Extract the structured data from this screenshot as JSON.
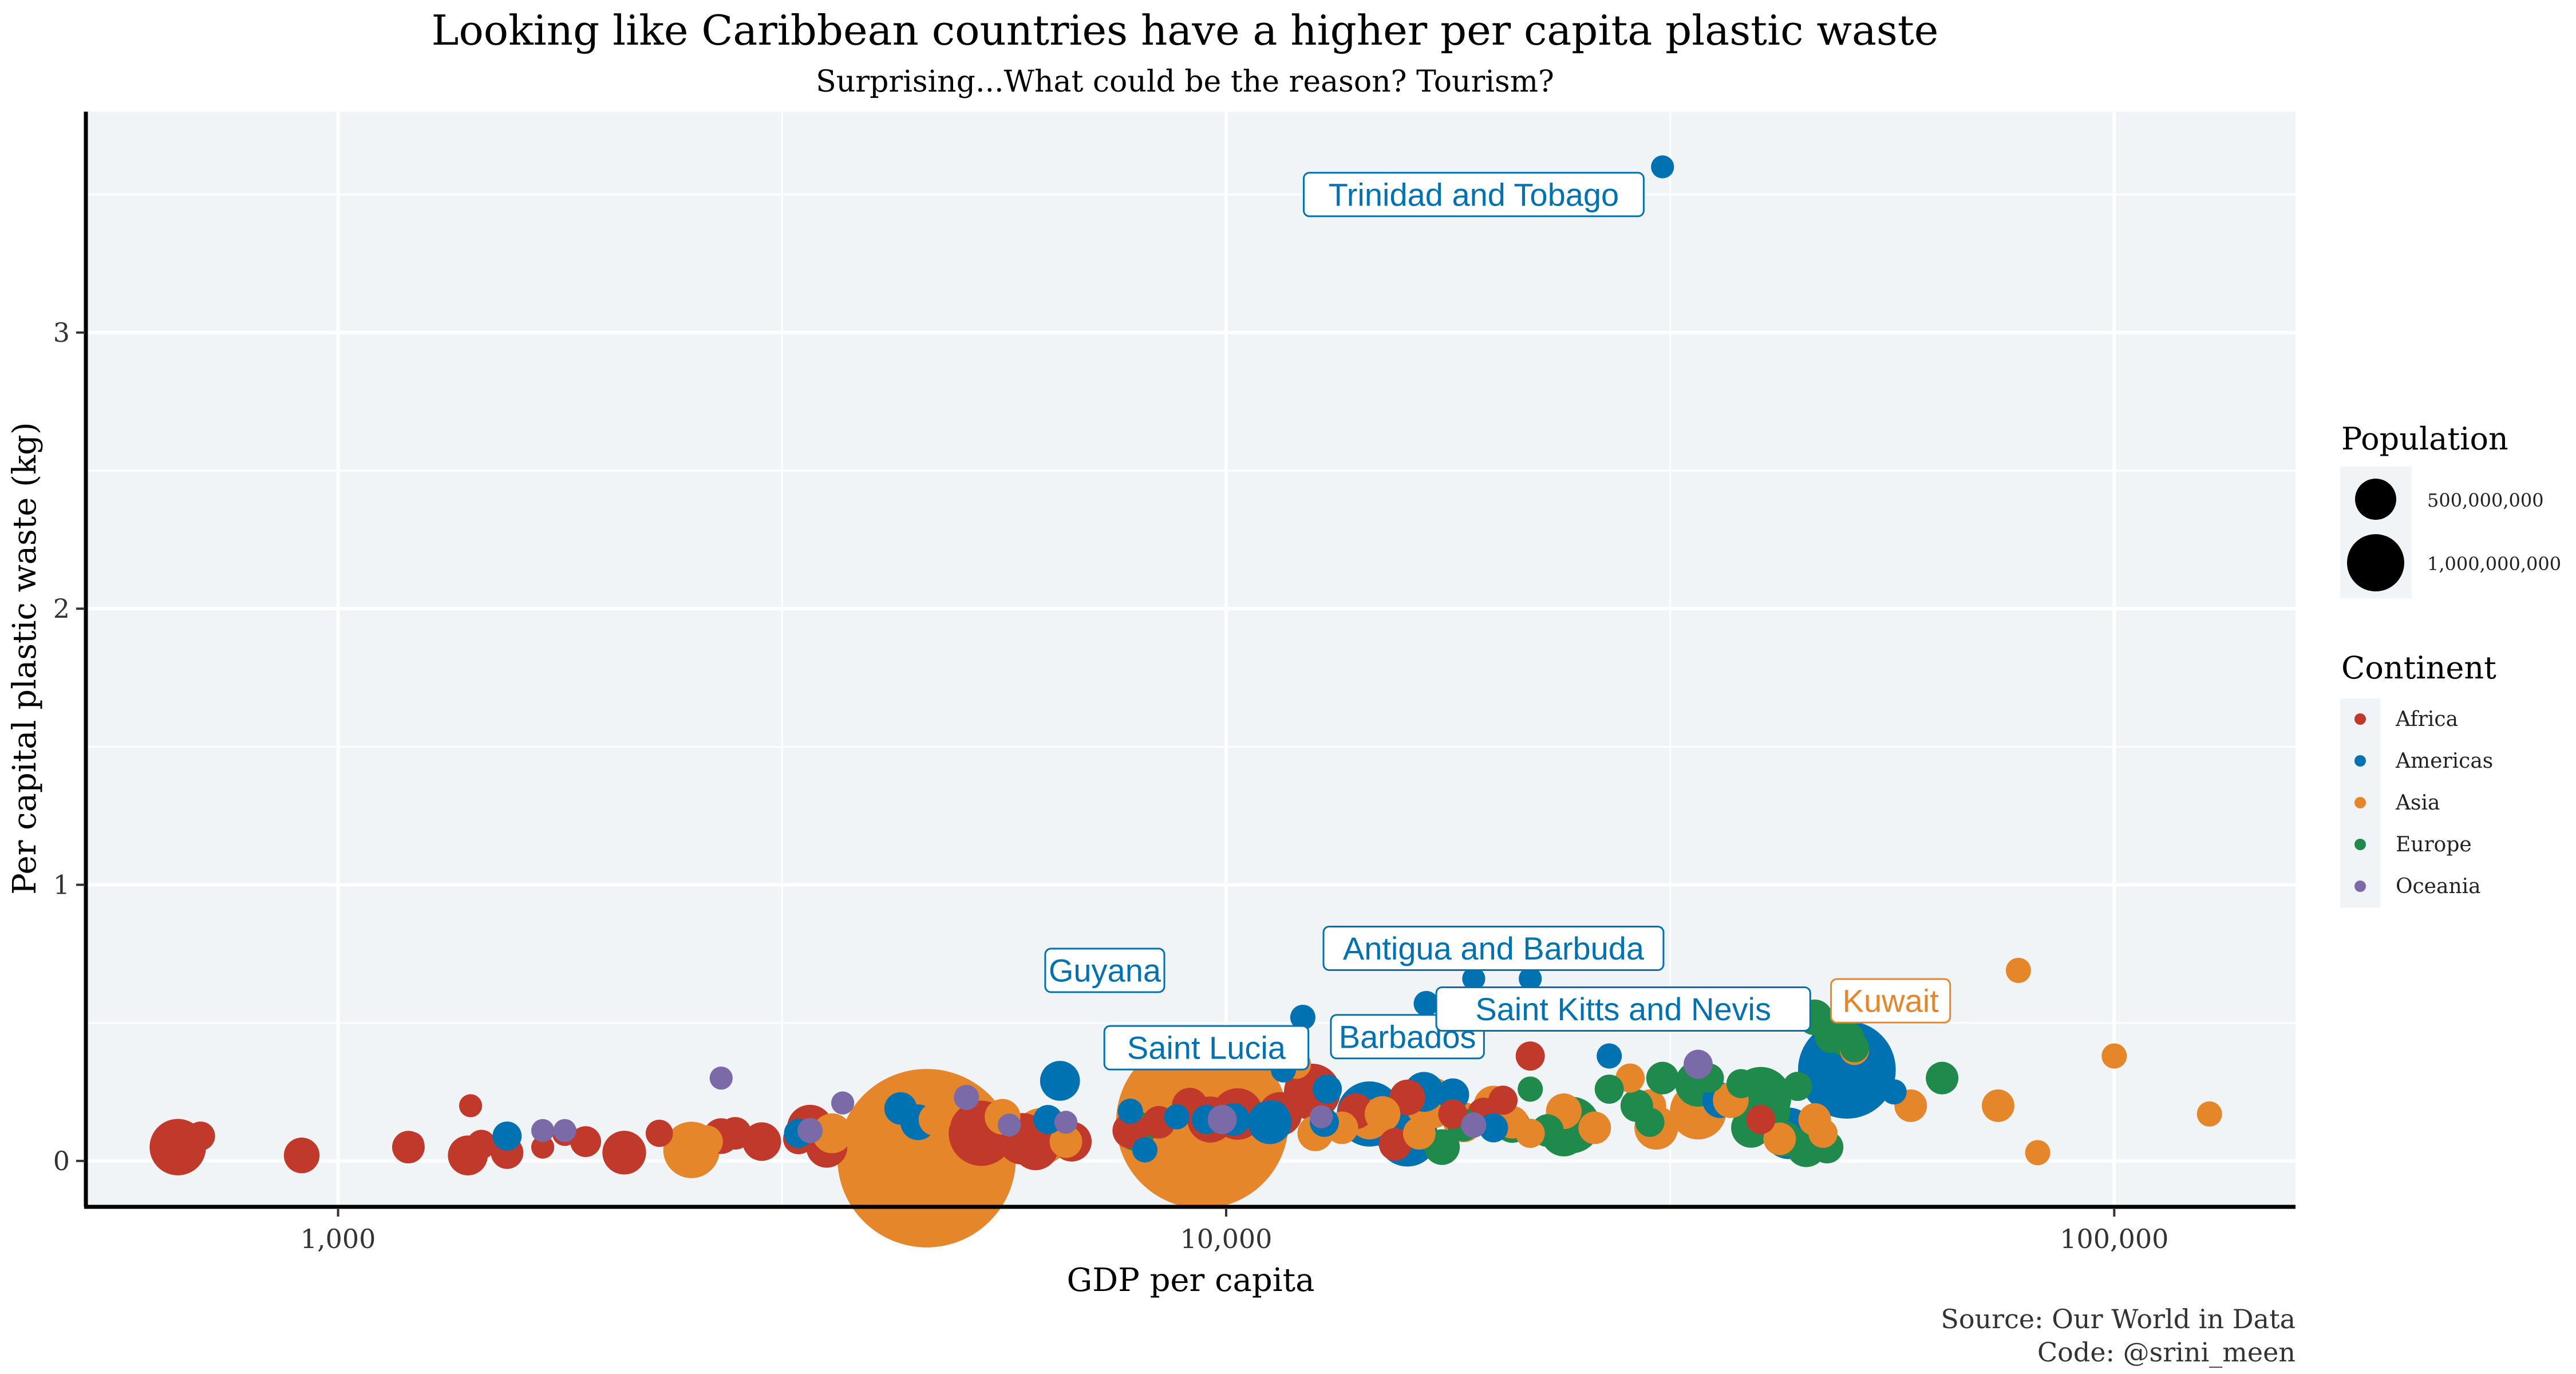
{
  "chart_data": {
    "type": "scatter",
    "title": "Looking like Caribbean countries have a higher per capita plastic waste",
    "subtitle": "Surprising...What could be the reason? Tourism?",
    "xlabel": "GDP per capita",
    "ylabel": "Per capital plastic waste (kg)",
    "x_scale": "log10",
    "xlim": [
      520,
      160000
    ],
    "ylim": [
      -0.16,
      3.8
    ],
    "x_ticks": [
      1000,
      10000,
      100000
    ],
    "x_tick_labels": [
      "1,000",
      "10,000",
      "100,000"
    ],
    "y_ticks": [
      0,
      1,
      2,
      3
    ],
    "y_tick_labels": [
      "0",
      "1",
      "2",
      "3"
    ],
    "caption": [
      "Source: Our World in Data",
      "Code: @srini_meen"
    ],
    "grid": true,
    "legend_position": "right",
    "colors": {
      "Africa": "#c0392b",
      "Americas": "#0072b2",
      "Asia": "#e6862a",
      "Europe": "#1f8a4c",
      "Oceania": "#7a6aa8",
      "panel": "#f1f4f7",
      "grid": "#ffffff"
    },
    "legend_population": {
      "title": "Population",
      "items": [
        {
          "label": "500,000,000",
          "value": 500000000
        },
        {
          "label": "1,000,000,000",
          "value": 1000000000
        }
      ]
    },
    "legend_continent": {
      "title": "Continent",
      "items": [
        "Africa",
        "Americas",
        "Asia",
        "Europe",
        "Oceania"
      ]
    },
    "labels": [
      {
        "text": "Trinidad and Tobago",
        "continent": "Americas",
        "x": 19000,
        "y": 3.5
      },
      {
        "text": "Guyana",
        "continent": "Americas",
        "x": 7300,
        "y": 0.69
      },
      {
        "text": "Antigua and Barbuda",
        "continent": "Americas",
        "x": 20000,
        "y": 0.77
      },
      {
        "text": "Saint Lucia",
        "continent": "Americas",
        "x": 9500,
        "y": 0.41
      },
      {
        "text": "Barbados",
        "continent": "Americas",
        "x": 16000,
        "y": 0.45
      },
      {
        "text": "Saint Kitts and Nevis",
        "continent": "Americas",
        "x": 28000,
        "y": 0.55
      },
      {
        "text": "Kuwait",
        "continent": "Asia",
        "x": 56000,
        "y": 0.58
      }
    ],
    "series": [
      {
        "name": "Africa",
        "points": [
          [
            660,
            0.05,
            30
          ],
          [
            700,
            0.09,
            8
          ],
          [
            910,
            0.02,
            12
          ],
          [
            1200,
            0.05,
            10
          ],
          [
            1210,
            0.06,
            6
          ],
          [
            1400,
            0.02,
            15
          ],
          [
            1410,
            0.2,
            5
          ],
          [
            1450,
            0.06,
            8
          ],
          [
            1550,
            0.03,
            10
          ],
          [
            1700,
            0.05,
            5
          ],
          [
            1800,
            0.1,
            6
          ],
          [
            1900,
            0.07,
            9
          ],
          [
            2100,
            0.03,
            18
          ],
          [
            2300,
            0.1,
            7
          ],
          [
            2700,
            0.09,
            12
          ],
          [
            2800,
            0.1,
            10
          ],
          [
            3000,
            0.07,
            14
          ],
          [
            3300,
            0.08,
            9
          ],
          [
            3400,
            0.12,
            20
          ],
          [
            3550,
            0.05,
            16
          ],
          [
            5300,
            0.1,
            40
          ],
          [
            5900,
            0.08,
            25
          ],
          [
            6100,
            0.05,
            20
          ],
          [
            6700,
            0.07,
            15
          ],
          [
            7800,
            0.11,
            12
          ],
          [
            8400,
            0.14,
            10
          ],
          [
            9100,
            0.2,
            12
          ],
          [
            9600,
            0.15,
            20
          ],
          [
            10300,
            0.17,
            25
          ],
          [
            11500,
            0.17,
            18
          ],
          [
            12500,
            0.25,
            30
          ],
          [
            14000,
            0.18,
            12
          ],
          [
            15500,
            0.06,
            10
          ],
          [
            18000,
            0.17,
            8
          ],
          [
            19500,
            0.17,
            10
          ],
          [
            20500,
            0.22,
            8
          ],
          [
            21000,
            0.14,
            10
          ],
          [
            16000,
            0.23,
            12
          ],
          [
            22000,
            0.38,
            8
          ],
          [
            40000,
            0.15,
            8
          ]
        ]
      },
      {
        "name": "Americas",
        "points": [
          [
            1550,
            0.09,
            8
          ],
          [
            3300,
            0.1,
            8
          ],
          [
            4300,
            0.19,
            10
          ],
          [
            4500,
            0.14,
            12
          ],
          [
            6300,
            0.15,
            8
          ],
          [
            6500,
            0.29,
            15
          ],
          [
            7800,
            0.18,
            6
          ],
          [
            8100,
            0.04,
            6
          ],
          [
            9500,
            0.15,
            8
          ],
          [
            10200,
            0.15,
            10
          ],
          [
            11200,
            0.14,
            18
          ],
          [
            11300,
            0.16,
            10
          ],
          [
            11600,
            0.33,
            6
          ],
          [
            12200,
            0.52,
            6
          ],
          [
            13000,
            0.26,
            8
          ],
          [
            14500,
            0.17,
            40
          ],
          [
            16000,
            0.09,
            35
          ],
          [
            16700,
            0.25,
            15
          ],
          [
            16800,
            0.57,
            6
          ],
          [
            18000,
            0.24,
            10
          ],
          [
            19000,
            0.66,
            5
          ],
          [
            20000,
            0.12,
            8
          ],
          [
            22000,
            0.66,
            5
          ],
          [
            27000,
            0.38,
            6
          ],
          [
            31000,
            3.6,
            5
          ],
          [
            36000,
            0.22,
            12
          ],
          [
            43000,
            0.1,
            25
          ],
          [
            50000,
            0.33,
            90
          ],
          [
            56500,
            0.25,
            6
          ],
          [
            8800,
            0.16,
            6
          ],
          [
            12900,
            0.14,
            8
          ]
        ]
      },
      {
        "name": "Asia",
        "points": [
          [
            2500,
            0.04,
            30
          ],
          [
            2600,
            0.07,
            10
          ],
          [
            3600,
            0.1,
            15
          ],
          [
            4000,
            0.08,
            25
          ],
          [
            4600,
            0.01,
            300
          ],
          [
            4550,
            0.08,
            50
          ],
          [
            4700,
            0.15,
            10
          ],
          [
            5600,
            0.16,
            12
          ],
          [
            6200,
            0.09,
            30
          ],
          [
            6600,
            0.07,
            10
          ],
          [
            8400,
            0.06,
            50
          ],
          [
            9400,
            0.14,
            280
          ],
          [
            12000,
            0.35,
            8
          ],
          [
            12600,
            0.1,
            12
          ],
          [
            13500,
            0.12,
            10
          ],
          [
            14500,
            0.15,
            15
          ],
          [
            15000,
            0.17,
            12
          ],
          [
            16500,
            0.1,
            10
          ],
          [
            17000,
            0.21,
            25
          ],
          [
            18500,
            0.14,
            15
          ],
          [
            20000,
            0.2,
            15
          ],
          [
            21000,
            0.14,
            10
          ],
          [
            22000,
            0.1,
            8
          ],
          [
            24000,
            0.18,
            12
          ],
          [
            26000,
            0.12,
            10
          ],
          [
            28500,
            0.3,
            8
          ],
          [
            30000,
            0.2,
            10
          ],
          [
            30500,
            0.12,
            18
          ],
          [
            34000,
            0.18,
            30
          ],
          [
            37000,
            0.22,
            12
          ],
          [
            42000,
            0.08,
            10
          ],
          [
            46000,
            0.15,
            10
          ],
          [
            47000,
            0.1,
            8
          ],
          [
            51000,
            0.4,
            8
          ],
          [
            59000,
            0.2,
            10
          ],
          [
            74000,
            0.2,
            10
          ],
          [
            78000,
            0.69,
            6
          ],
          [
            82000,
            0.03,
            6
          ],
          [
            100000,
            0.38,
            6
          ],
          [
            128000,
            0.17,
            6
          ]
        ]
      },
      {
        "name": "Europe",
        "points": [
          [
            7900,
            0.11,
            15
          ],
          [
            17500,
            0.05,
            12
          ],
          [
            18500,
            0.13,
            10
          ],
          [
            21000,
            0.13,
            12
          ],
          [
            22000,
            0.26,
            6
          ],
          [
            23000,
            0.11,
            10
          ],
          [
            24000,
            0.1,
            20
          ],
          [
            24500,
            0.13,
            30
          ],
          [
            27000,
            0.26,
            8
          ],
          [
            29000,
            0.2,
            10
          ],
          [
            30000,
            0.14,
            8
          ],
          [
            31000,
            0.3,
            10
          ],
          [
            34000,
            0.28,
            20
          ],
          [
            35000,
            0.3,
            8
          ],
          [
            38000,
            0.28,
            8
          ],
          [
            39000,
            0.12,
            15
          ],
          [
            40000,
            0.23,
            35
          ],
          [
            41000,
            0.18,
            15
          ],
          [
            42500,
            0.08,
            12
          ],
          [
            44000,
            0.27,
            8
          ],
          [
            45000,
            0.05,
            15
          ],
          [
            46000,
            0.52,
            12
          ],
          [
            47500,
            0.05,
            10
          ],
          [
            48000,
            0.45,
            10
          ],
          [
            50000,
            0.44,
            12
          ],
          [
            51000,
            0.41,
            8
          ],
          [
            64000,
            0.3,
            10
          ]
        ]
      },
      {
        "name": "Oceania",
        "points": [
          [
            1700,
            0.11,
            5
          ],
          [
            1800,
            0.11,
            5
          ],
          [
            2700,
            0.3,
            5
          ],
          [
            3400,
            0.11,
            6
          ],
          [
            3700,
            0.21,
            5
          ],
          [
            5100,
            0.23,
            6
          ],
          [
            5700,
            0.13,
            5
          ],
          [
            6600,
            0.14,
            5
          ],
          [
            8500,
            0.41,
            6
          ],
          [
            9900,
            0.15,
            8
          ],
          [
            12800,
            0.16,
            5
          ],
          [
            19000,
            0.13,
            6
          ],
          [
            34000,
            0.35,
            8
          ]
        ]
      }
    ]
  }
}
